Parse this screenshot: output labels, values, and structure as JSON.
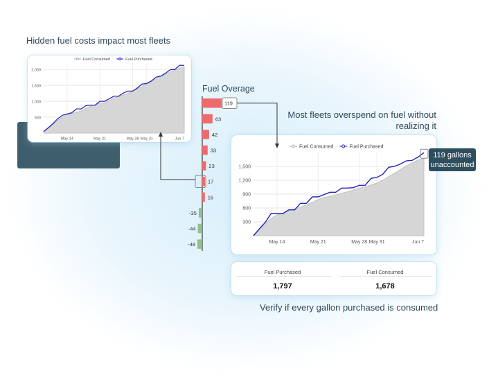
{
  "headings": {
    "hidden_costs": "Hidden fuel costs impact most fleets",
    "fuel_overage": "Fuel Overage",
    "overspend": "Most fleets overspend on fuel without realizing it",
    "verify": "Verify if every gallon purchased is consumed"
  },
  "callout": {
    "line1": "119 gallons",
    "line2": "unaccounted"
  },
  "stats": [
    {
      "label": "Fuel Purchased",
      "value": "1,797"
    },
    {
      "label": "Fuel Consumed",
      "value": "1,678"
    }
  ],
  "colors": {
    "purchased_line": "#2323b8",
    "consumed_area": "#d6d6d6",
    "positive_bar": "#ef6a6a",
    "negative_bar": "#8fc08f",
    "heading_text": "#2f4a5a",
    "callout_bg": "#2e4e5e"
  },
  "chart_data": [
    {
      "id": "top",
      "type": "area",
      "series": [
        {
          "name": "Fuel Consumed",
          "values": [
            50,
            150,
            270,
            400,
            500,
            580,
            620,
            650,
            700,
            780,
            850,
            890,
            940,
            960,
            1020,
            1100,
            1150,
            1200,
            1250,
            1320,
            1390,
            1460,
            1540,
            1620,
            1700,
            1780,
            1850,
            1920,
            1980,
            2040,
            2090
          ]
        },
        {
          "name": "Fuel Purchased",
          "values": [
            50,
            170,
            300,
            450,
            560,
            600,
            640,
            760,
            760,
            860,
            880,
            880,
            1000,
            1000,
            1080,
            1160,
            1160,
            1260,
            1320,
            1320,
            1420,
            1540,
            1560,
            1640,
            1760,
            1790,
            1880,
            1990,
            2000,
            2130,
            2130
          ]
        }
      ],
      "x_ticks": [
        {
          "label": "May 14",
          "i": 5
        },
        {
          "label": "May 21",
          "i": 12
        },
        {
          "label": "May 28",
          "i": 19
        },
        {
          "label": "May 31",
          "i": 22
        },
        {
          "label": "Jun 7",
          "i": 29
        }
      ],
      "y_ticks": [
        500,
        1000,
        1500,
        2000
      ],
      "y_tick_labels": [
        "500",
        "1,000",
        "1,500",
        "2,000"
      ],
      "ylim": [
        0,
        2200
      ]
    },
    {
      "id": "main",
      "type": "area",
      "series": [
        {
          "name": "Fuel Consumed",
          "values": [
            0,
            130,
            260,
            370,
            450,
            480,
            540,
            580,
            620,
            670,
            720,
            780,
            830,
            850,
            880,
            920,
            950,
            990,
            1030,
            1060,
            1100,
            1140,
            1200,
            1280,
            1350,
            1430,
            1510,
            1580,
            1640,
            1678
          ]
        },
        {
          "name": "Fuel Purchased",
          "values": [
            0,
            150,
            290,
            480,
            480,
            480,
            560,
            560,
            700,
            700,
            840,
            840,
            890,
            940,
            940,
            1030,
            1030,
            1040,
            1090,
            1090,
            1240,
            1260,
            1330,
            1480,
            1500,
            1550,
            1620,
            1630,
            1700,
            1797
          ]
        }
      ],
      "x_ticks": [
        {
          "label": "May 14",
          "i": 4
        },
        {
          "label": "May 21",
          "i": 11
        },
        {
          "label": "May 28",
          "i": 18
        },
        {
          "label": "May 31",
          "i": 21
        },
        {
          "label": "Jun 7",
          "i": 28
        }
      ],
      "y_ticks": [
        300,
        600,
        900,
        1200,
        1500
      ],
      "y_tick_labels": [
        "300",
        "600",
        "900",
        "1,200",
        "1,500"
      ],
      "ylim": [
        0,
        1800
      ]
    },
    {
      "id": "overage",
      "type": "bar",
      "orientation": "horizontal",
      "values": [
        119,
        63,
        42,
        33,
        23,
        17,
        16,
        -35,
        -44,
        -48
      ],
      "labels": [
        "119",
        "63",
        "42",
        "33",
        "23",
        "17",
        "16",
        "-35",
        "-44",
        "-48"
      ]
    }
  ]
}
